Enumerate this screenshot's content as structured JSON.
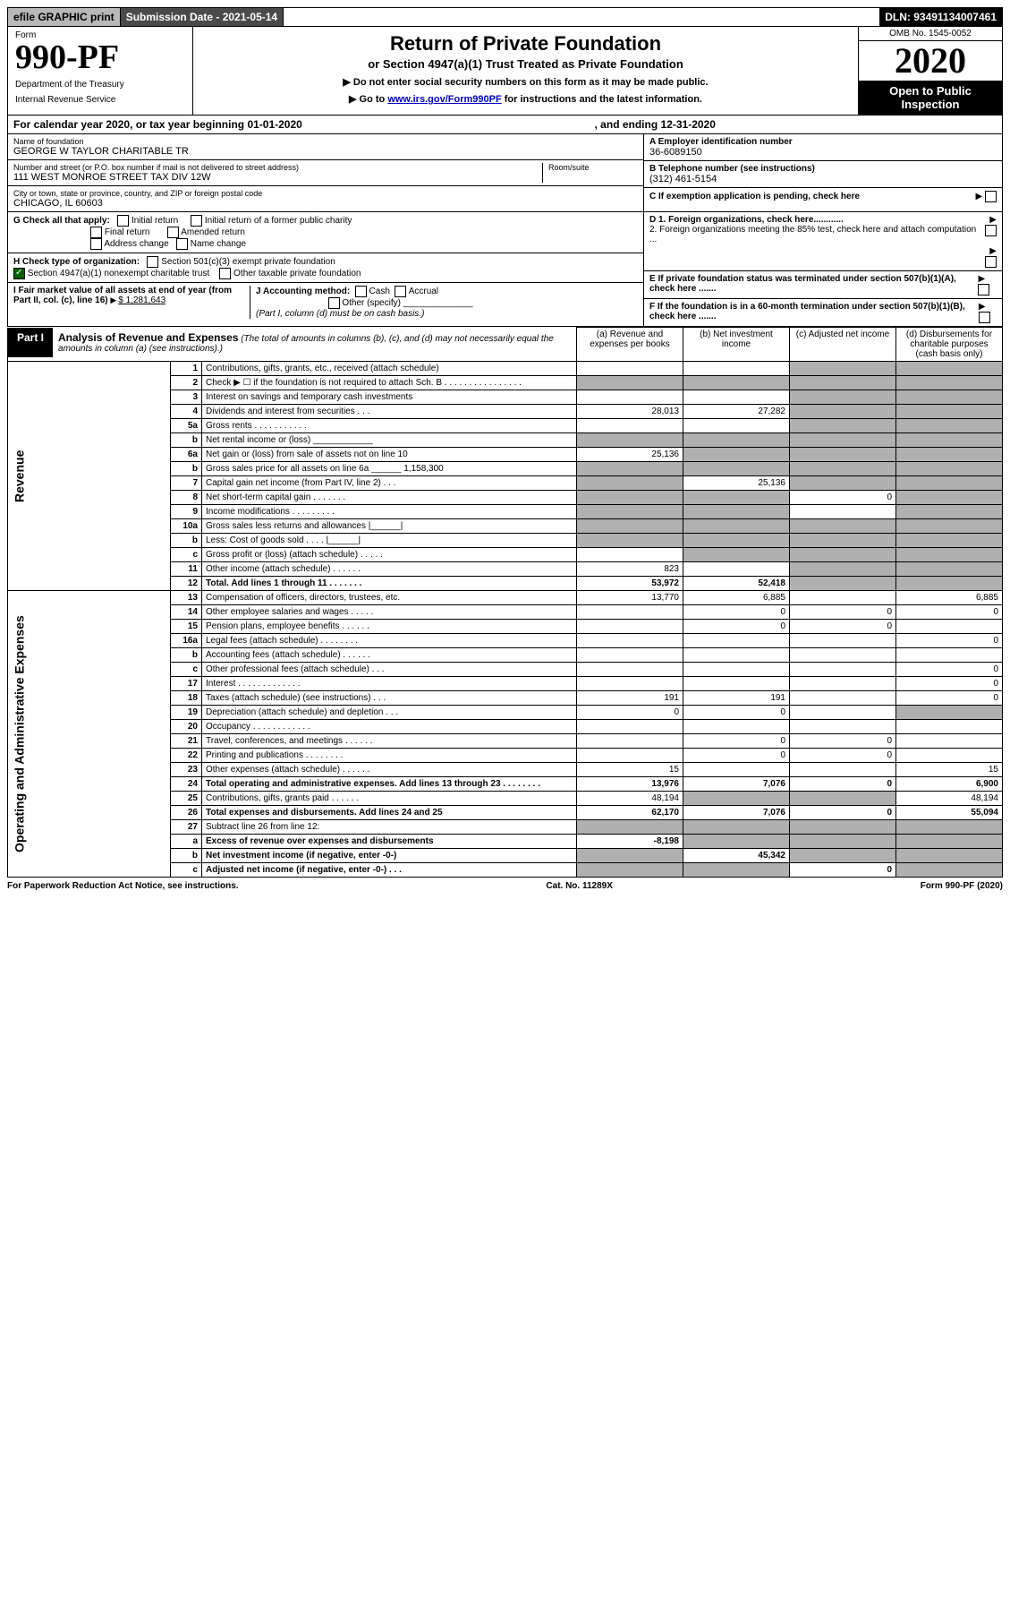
{
  "topbar": {
    "efile": "efile GRAPHIC print",
    "submission_label": "Submission Date - 2021-05-14",
    "dln": "DLN: 93491134007461"
  },
  "header": {
    "form_label": "Form",
    "form_number": "990-PF",
    "dept1": "Department of the Treasury",
    "dept2": "Internal Revenue Service",
    "title": "Return of Private Foundation",
    "subtitle1": "or Section 4947(a)(1) Trust Treated as Private Foundation",
    "subtitle2a": "▶ Do not enter social security numbers on this form as it may be made public.",
    "subtitle2b_pre": "▶ Go to ",
    "subtitle2b_link": "www.irs.gov/Form990PF",
    "subtitle2b_post": " for instructions and the latest information.",
    "omb": "OMB No. 1545-0052",
    "year": "2020",
    "open": "Open to Public Inspection"
  },
  "cal": {
    "pre": "For calendar year 2020, or tax year beginning 01-01-2020",
    "mid": ", and ending 12-31-2020"
  },
  "info": {
    "name_label": "Name of foundation",
    "name": "GEORGE W TAYLOR CHARITABLE TR",
    "addr_label": "Number and street (or P.O. box number if mail is not delivered to street address)",
    "addr": "111 WEST MONROE STREET TAX DIV 12W",
    "room_label": "Room/suite",
    "city_label": "City or town, state or province, country, and ZIP or foreign postal code",
    "city": "CHICAGO, IL  60603",
    "a_label": "A Employer identification number",
    "a_val": "36-6089150",
    "b_label": "B Telephone number (see instructions)",
    "b_val": "(312) 461-5154",
    "c_label": "C If exemption application is pending, check here",
    "d1": "D 1. Foreign organizations, check here............",
    "d2": "2. Foreign organizations meeting the 85% test, check here and attach computation ...",
    "e": "E If private foundation status was terminated under section 507(b)(1)(A), check here .......",
    "f": "F If the foundation is in a 60-month termination under section 507(b)(1)(B), check here ......."
  },
  "g": {
    "label": "G Check all that apply:",
    "initial": "Initial return",
    "initial_former": "Initial return of a former public charity",
    "final": "Final return",
    "amended": "Amended return",
    "address": "Address change",
    "name_change": "Name change"
  },
  "h": {
    "label": "H Check type of organization:",
    "c3": "Section 501(c)(3) exempt private foundation",
    "4947": "Section 4947(a)(1) nonexempt charitable trust",
    "other": "Other taxable private foundation"
  },
  "i": {
    "label": "I Fair market value of all assets at end of year (from Part II, col. (c), line 16)",
    "val": "$  1,281,643"
  },
  "j": {
    "label": "J Accounting method:",
    "cash": "Cash",
    "accrual": "Accrual",
    "other": "Other (specify)",
    "note": "(Part I, column (d) must be on cash basis.)"
  },
  "part1": {
    "label": "Part I",
    "title": "Analysis of Revenue and Expenses",
    "note": "(The total of amounts in columns (b), (c), and (d) may not necessarily equal the amounts in column (a) (see instructions).)",
    "col_a": "(a) Revenue and expenses per books",
    "col_b": "(b) Net investment income",
    "col_c": "(c) Adjusted net income",
    "col_d": "(d) Disbursements for charitable purposes (cash basis only)"
  },
  "sections": {
    "revenue": "Revenue",
    "expenses": "Operating and Administrative Expenses"
  },
  "rows": [
    {
      "n": "1",
      "d": "Contributions, gifts, grants, etc., received (attach schedule)",
      "a": "",
      "b": "",
      "c": "",
      "cd": "s",
      "dd": "s"
    },
    {
      "n": "2",
      "d": "Check ▶ ☐ if the foundation is not required to attach Sch. B   .  .  .  .  .  .  .  .  .  .  .  .  .  .  .  .",
      "a": "",
      "b": "",
      "as": "s",
      "bs": "s",
      "cd": "s",
      "dd": "s"
    },
    {
      "n": "3",
      "d": "Interest on savings and temporary cash investments",
      "a": "",
      "b": "",
      "c": "",
      "cd": "s",
      "dd": "s"
    },
    {
      "n": "4",
      "d": "Dividends and interest from securities   .   .   .",
      "a": "28,013",
      "b": "27,282",
      "c": "",
      "cd": "s",
      "dd": "s"
    },
    {
      "n": "5a",
      "d": "Gross rents   .   .   .   .   .   .   .   .   .   .   .",
      "a": "",
      "b": "",
      "c": "",
      "cd": "s",
      "dd": "s"
    },
    {
      "n": "b",
      "d": "Net rental income or (loss)  ____________",
      "a": "",
      "b": "",
      "as": "s",
      "bs": "s",
      "cd": "s",
      "dd": "s"
    },
    {
      "n": "6a",
      "d": "Net gain or (loss) from sale of assets not on line 10",
      "a": "25,136",
      "b": "",
      "bs": "s",
      "cd": "s",
      "dd": "s"
    },
    {
      "n": "b",
      "d": "Gross sales price for all assets on line 6a ______ 1,158,300",
      "a": "",
      "b": "",
      "as": "s",
      "bs": "s",
      "cd": "s",
      "dd": "s"
    },
    {
      "n": "7",
      "d": "Capital gain net income (from Part IV, line 2)   .   .   .",
      "a": "",
      "as": "s",
      "b": "25,136",
      "cd": "s",
      "dd": "s"
    },
    {
      "n": "8",
      "d": "Net short-term capital gain   .   .   .   .   .   .   .",
      "a": "",
      "b": "",
      "as": "s",
      "bs": "s",
      "c": "0",
      "dd": "s"
    },
    {
      "n": "9",
      "d": "Income modifications  .   .   .   .   .   .   .   .   .",
      "a": "",
      "b": "",
      "as": "s",
      "bs": "s",
      "c": "",
      "dd": "s"
    },
    {
      "n": "10a",
      "d": "Gross sales less returns and allowances  |______|",
      "a": "",
      "b": "",
      "as": "s",
      "bs": "s",
      "cd": "s",
      "dd": "s"
    },
    {
      "n": "b",
      "d": "Less: Cost of goods sold   .   .   .   .   |______|",
      "a": "",
      "b": "",
      "as": "s",
      "bs": "s",
      "cd": "s",
      "dd": "s"
    },
    {
      "n": "c",
      "d": "Gross profit or (loss) (attach schedule)   .   .   .   .   .",
      "a": "",
      "b": "",
      "bs": "s",
      "c": "",
      "cd": "s",
      "dd": "s"
    },
    {
      "n": "11",
      "d": "Other income (attach schedule)   .   .   .   .   .   .",
      "a": "823",
      "b": "",
      "c": "",
      "cd": "s",
      "dd": "s"
    },
    {
      "n": "12",
      "d": "Total. Add lines 1 through 11   .   .   .   .   .   .   .",
      "a": "53,972",
      "b": "52,418",
      "c": "",
      "cd": "s",
      "dd": "s",
      "bold": true
    },
    {
      "n": "13",
      "d": "Compensation of officers, directors, trustees, etc.",
      "a": "13,770",
      "b": "6,885",
      "c": "",
      "dv": "6,885",
      "sec": "exp"
    },
    {
      "n": "14",
      "d": "Other employee salaries and wages   .   .   .   .   .",
      "a": "",
      "b": "0",
      "c": "0",
      "dv": "0",
      "sec": "exp"
    },
    {
      "n": "15",
      "d": "Pension plans, employee benefits   .   .   .   .   .   .",
      "a": "",
      "b": "0",
      "c": "0",
      "dv": "",
      "sec": "exp"
    },
    {
      "n": "16a",
      "d": "Legal fees (attach schedule)  .   .   .   .   .   .   .   .",
      "a": "",
      "b": "",
      "c": "",
      "dv": "0",
      "sec": "exp"
    },
    {
      "n": "b",
      "d": "Accounting fees (attach schedule)   .   .   .   .   .   .",
      "a": "",
      "b": "",
      "c": "",
      "dv": "",
      "sec": "exp"
    },
    {
      "n": "c",
      "d": "Other professional fees (attach schedule)   .   .   .",
      "a": "",
      "b": "",
      "c": "",
      "dv": "0",
      "sec": "exp"
    },
    {
      "n": "17",
      "d": "Interest  .   .   .   .   .   .   .   .   .   .   .   .   .",
      "a": "",
      "b": "",
      "c": "",
      "dv": "0",
      "sec": "exp"
    },
    {
      "n": "18",
      "d": "Taxes (attach schedule) (see instructions)   .   .   .",
      "a": "191",
      "b": "191",
      "c": "",
      "dv": "0",
      "sec": "exp"
    },
    {
      "n": "19",
      "d": "Depreciation (attach schedule) and depletion   .   .   .",
      "a": "0",
      "b": "0",
      "c": "",
      "dd": "s",
      "sec": "exp"
    },
    {
      "n": "20",
      "d": "Occupancy  .   .   .   .   .   .   .   .   .   .   .   .",
      "a": "",
      "b": "",
      "c": "",
      "dv": "",
      "sec": "exp"
    },
    {
      "n": "21",
      "d": "Travel, conferences, and meetings  .   .   .   .   .   .",
      "a": "",
      "b": "0",
      "c": "0",
      "dv": "",
      "sec": "exp"
    },
    {
      "n": "22",
      "d": "Printing and publications  .   .   .   .   .   .   .   .",
      "a": "",
      "b": "0",
      "c": "0",
      "dv": "",
      "sec": "exp"
    },
    {
      "n": "23",
      "d": "Other expenses (attach schedule)   .   .   .   .   .   .",
      "a": "15",
      "b": "",
      "c": "",
      "dv": "15",
      "sec": "exp"
    },
    {
      "n": "24",
      "d": "Total operating and administrative expenses. Add lines 13 through 23   .   .   .   .   .   .   .   .",
      "a": "13,976",
      "b": "7,076",
      "c": "0",
      "dv": "6,900",
      "bold": true,
      "sec": "exp"
    },
    {
      "n": "25",
      "d": "Contributions, gifts, grants paid   .   .   .   .   .   .",
      "a": "48,194",
      "b": "",
      "bs": "s",
      "cd": "s",
      "dv": "48,194",
      "sec": "exp"
    },
    {
      "n": "26",
      "d": "Total expenses and disbursements. Add lines 24 and 25",
      "a": "62,170",
      "b": "7,076",
      "c": "0",
      "dv": "55,094",
      "bold": true,
      "sec": "exp"
    },
    {
      "n": "27",
      "d": "Subtract line 26 from line 12:",
      "a": "",
      "b": "",
      "as": "s",
      "bs": "s",
      "cd": "s",
      "dd": "s",
      "sec": "exp"
    },
    {
      "n": "a",
      "d": "Excess of revenue over expenses and disbursements",
      "a": "-8,198",
      "b": "",
      "bs": "s",
      "cd": "s",
      "dd": "s",
      "bold": true,
      "sec": "exp"
    },
    {
      "n": "b",
      "d": "Net investment income (if negative, enter -0-)",
      "a": "",
      "as": "s",
      "b": "45,342",
      "cd": "s",
      "dd": "s",
      "bold": true,
      "sec": "exp"
    },
    {
      "n": "c",
      "d": "Adjusted net income (if negative, enter -0-)   .   .   .",
      "a": "",
      "b": "",
      "as": "s",
      "bs": "s",
      "c": "0",
      "dd": "s",
      "bold": true,
      "sec": "exp"
    }
  ],
  "footer": {
    "left": "For Paperwork Reduction Act Notice, see instructions.",
    "mid": "Cat. No. 11289X",
    "right": "Form 990-PF (2020)"
  }
}
